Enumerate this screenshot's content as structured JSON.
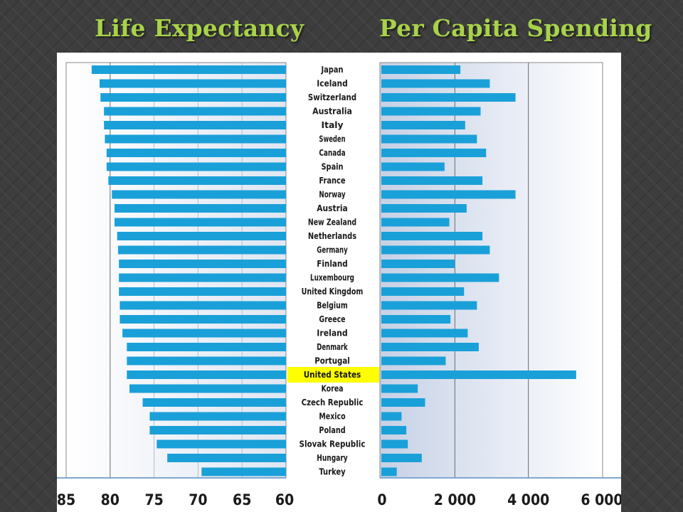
{
  "titles": {
    "left": "Life Expectancy",
    "right": "Per Capita Spending"
  },
  "colors": {
    "bar": "#1aa0d8",
    "highlight": "#ffff00",
    "title": "#a8d24a",
    "background": "#3d3d3d"
  },
  "chart_data": [
    {
      "type": "bar",
      "orientation": "horizontal",
      "direction": "reversed",
      "title": "Life Expectancy",
      "categories": [
        "Japan",
        "Iceland",
        "Switzerland",
        "Australia",
        "Italy",
        "Sweden",
        "Canada",
        "Spain",
        "France",
        "Norway",
        "Austria",
        "New Zealand",
        "Netherlands",
        "Germany",
        "Finland",
        "Luxembourg",
        "United Kingdom",
        "Belgium",
        "Greece",
        "Ireland",
        "Denmark",
        "Portugal",
        "United States",
        "Korea",
        "Czech Republic",
        "Mexico",
        "Poland",
        "Slovak Republic",
        "Hungary",
        "Turkey"
      ],
      "values": [
        82.1,
        81.2,
        81.1,
        80.7,
        80.7,
        80.6,
        80.4,
        80.4,
        80.2,
        79.8,
        79.5,
        79.5,
        79.2,
        79.1,
        79.0,
        79.0,
        79.0,
        78.9,
        78.9,
        78.6,
        78.1,
        78.1,
        78.1,
        77.8,
        76.3,
        75.5,
        75.5,
        74.7,
        73.5,
        69.6
      ],
      "xlim": [
        85,
        60
      ],
      "xticks": [
        "85",
        "80",
        "75",
        "70",
        "65",
        "60"
      ],
      "highlight": "United States",
      "grid": true
    },
    {
      "type": "bar",
      "orientation": "horizontal",
      "title": "Per Capita Spending",
      "categories": [
        "Japan",
        "Iceland",
        "Switzerland",
        "Australia",
        "Italy",
        "Sweden",
        "Canada",
        "Spain",
        "France",
        "Norway",
        "Austria",
        "New Zealand",
        "Netherlands",
        "Germany",
        "Finland",
        "Luxembourg",
        "United Kingdom",
        "Belgium",
        "Greece",
        "Ireland",
        "Denmark",
        "Portugal",
        "United States",
        "Korea",
        "Czech Republic",
        "Mexico",
        "Poland",
        "Slovak Republic",
        "Hungary",
        "Turkey"
      ],
      "values": [
        2150,
        2950,
        3650,
        2700,
        2280,
        2600,
        2850,
        1720,
        2750,
        3650,
        2320,
        1850,
        2750,
        2950,
        2000,
        3200,
        2250,
        2600,
        1880,
        2350,
        2650,
        1750,
        5300,
        990,
        1190,
        550,
        680,
        720,
        1100,
        420
      ],
      "xlim": [
        0,
        6000
      ],
      "xticks": [
        "0",
        "2 000",
        "4 000",
        "6 000"
      ],
      "highlight": "United States",
      "grid": true
    }
  ]
}
